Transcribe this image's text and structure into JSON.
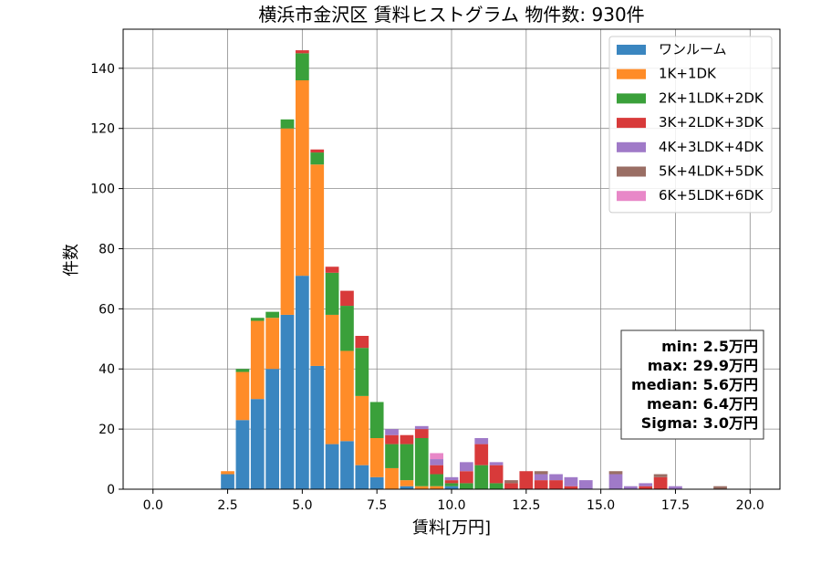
{
  "chart_data": {
    "type": "bar",
    "stacked": true,
    "title": "横浜市金沢区 賃料ヒストグラム  物件数: 930件",
    "xlabel": "賃料[万円]",
    "ylabel": "件数",
    "xlim": [
      -1.0,
      21.0
    ],
    "ylim": [
      0,
      153
    ],
    "grid": true,
    "legend_position": "top-right",
    "xticks": [
      "0.0",
      "2.5",
      "5.0",
      "7.5",
      "10.0",
      "12.5",
      "15.0",
      "17.5",
      "20.0"
    ],
    "xtick_values": [
      0,
      2.5,
      5,
      7.5,
      10,
      12.5,
      15,
      17.5,
      20
    ],
    "yticks": [
      "0",
      "20",
      "40",
      "60",
      "80",
      "100",
      "120",
      "140"
    ],
    "ytick_values": [
      0,
      20,
      40,
      60,
      80,
      100,
      120,
      140
    ],
    "x": [
      2.5,
      3.0,
      3.5,
      4.0,
      4.5,
      5.0,
      5.5,
      6.0,
      6.5,
      7.0,
      7.5,
      8.0,
      8.5,
      9.0,
      9.5,
      10.0,
      10.5,
      11.0,
      11.5,
      12.0,
      12.5,
      13.0,
      13.5,
      14.0,
      14.5,
      15.0,
      15.5,
      16.0,
      16.5,
      17.0,
      17.5,
      18.0,
      18.5,
      19.0
    ],
    "series": [
      {
        "name": "ワンルーム",
        "color": "#3a86c0",
        "values": [
          5,
          23,
          30,
          40,
          58,
          71,
          41,
          15,
          16,
          8,
          4,
          0,
          1,
          0,
          0,
          1,
          0,
          0,
          0,
          0,
          0,
          0,
          0,
          0,
          0,
          0,
          0,
          0,
          0,
          0,
          0,
          0,
          0,
          0
        ]
      },
      {
        "name": "1K+1DK",
        "color": "#ff8c28",
        "values": [
          1,
          16,
          26,
          17,
          62,
          65,
          67,
          43,
          30,
          23,
          13,
          7,
          2,
          1,
          1,
          0,
          0,
          0,
          0,
          0,
          0,
          0,
          0,
          0,
          0,
          0,
          0,
          0,
          0,
          0,
          0,
          0,
          0,
          0
        ]
      },
      {
        "name": "2K+1LDK+2DK",
        "color": "#3aa03a",
        "values": [
          0,
          1,
          1,
          2,
          3,
          9,
          4,
          14,
          15,
          16,
          12,
          8,
          12,
          16,
          4,
          1,
          2,
          8,
          2,
          0,
          0,
          0,
          0,
          0,
          0,
          0,
          0,
          0,
          0,
          0,
          0,
          0,
          0,
          0
        ]
      },
      {
        "name": "3K+2LDK+3DK",
        "color": "#d83a3a",
        "values": [
          0,
          0,
          0,
          0,
          0,
          1,
          1,
          2,
          5,
          4,
          0,
          3,
          3,
          3,
          3,
          1,
          4,
          7,
          6,
          2,
          6,
          3,
          3,
          1,
          0,
          0,
          0,
          0,
          1,
          4,
          0,
          0,
          0,
          0
        ]
      },
      {
        "name": "4K+3LDK+4DK",
        "color": "#a07ac8",
        "values": [
          0,
          0,
          0,
          0,
          0,
          0,
          0,
          0,
          0,
          0,
          0,
          2,
          0,
          1,
          2,
          1,
          3,
          2,
          1,
          0,
          0,
          2,
          2,
          3,
          3,
          0,
          5,
          1,
          1,
          0,
          1,
          0,
          0,
          0
        ]
      },
      {
        "name": "5K+4LDK+5DK",
        "color": "#9a6e64",
        "values": [
          0,
          0,
          0,
          0,
          0,
          0,
          0,
          0,
          0,
          0,
          0,
          0,
          0,
          0,
          0,
          0,
          0,
          0,
          0,
          1,
          0,
          1,
          0,
          0,
          0,
          0,
          1,
          0,
          0,
          1,
          0,
          0,
          0,
          1
        ]
      },
      {
        "name": "6K+5LDK+6DK",
        "color": "#e888c8",
        "values": [
          0,
          0,
          0,
          0,
          0,
          0,
          0,
          0,
          0,
          0,
          0,
          0,
          0,
          0,
          2,
          0,
          0,
          0,
          0,
          0,
          0,
          0,
          0,
          0,
          0,
          0,
          0,
          0,
          0,
          0,
          0,
          0,
          0,
          0
        ]
      }
    ],
    "stats_box": {
      "lines": [
        "min: 2.5万円",
        "max: 29.9万円",
        "median: 5.6万円",
        "mean: 6.4万円",
        "Sigma: 3.0万円"
      ]
    }
  }
}
